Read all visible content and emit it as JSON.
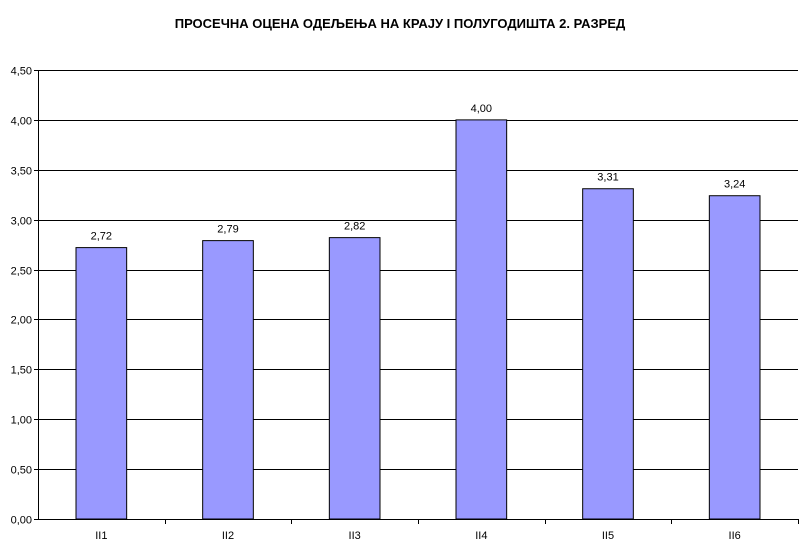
{
  "chart_data": {
    "type": "bar",
    "title": "ПРОСЕЧНА ОЦЕНА ОДЕЉЕЊА НА КРАЈУ  I ПОЛУГОДИШТА 2. РАЗРЕД",
    "xlabel": "",
    "ylabel": "",
    "categories": [
      "II1",
      "II2",
      "II3",
      "II4",
      "II5",
      "II6"
    ],
    "values": [
      2.72,
      2.79,
      2.82,
      4.0,
      3.31,
      3.24
    ],
    "value_labels": [
      "2,72",
      "2,79",
      "2,82",
      "4,00",
      "3,31",
      "3,24"
    ],
    "ylim": [
      0,
      4.5
    ],
    "yticks": [
      0,
      0.5,
      1,
      1.5,
      2,
      2.5,
      3,
      3.5,
      4,
      4.5
    ],
    "ytick_labels": [
      "0,00",
      "0,50",
      "1,00",
      "1,50",
      "2,00",
      "2,50",
      "3,00",
      "3,50",
      "4,00",
      "4,50"
    ],
    "grid": true,
    "legend": "none",
    "bar_color": "#9999ff",
    "bar_edge_color": "#000000",
    "grid_color": "#000000"
  }
}
